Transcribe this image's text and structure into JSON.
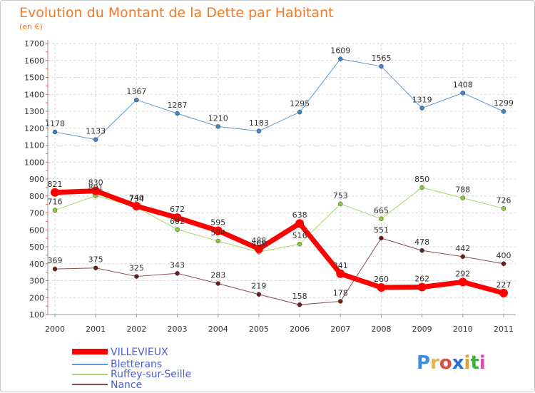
{
  "chart_data": {
    "type": "line",
    "title": "Evolution du Montant de la Dette par Habitant",
    "subtitle": "(en €)",
    "xlabel": "",
    "ylabel": "",
    "categories": [
      "2000",
      "2001",
      "2002",
      "2003",
      "2004",
      "2005",
      "2006",
      "2007",
      "2008",
      "2009",
      "2010",
      "2011"
    ],
    "ylim": [
      100,
      1700
    ],
    "yticks": [
      100,
      200,
      300,
      400,
      500,
      600,
      700,
      800,
      900,
      1000,
      1100,
      1200,
      1300,
      1400,
      1500,
      1600,
      1700
    ],
    "series": [
      {
        "name": "Bletterans",
        "color": "#5a9bd5",
        "marker": "#3e86c7",
        "width": 1,
        "values": [
          1178,
          1133,
          1367,
          1287,
          1210,
          1183,
          1295,
          1609,
          1565,
          1319,
          1408,
          1299
        ]
      },
      {
        "name": "Ruffey-sur-Seille",
        "color": "#a6d96a",
        "marker": "#8ccc3c",
        "width": 1,
        "values": [
          716,
          801,
          734,
          602,
          534,
          469,
          516,
          753,
          665,
          850,
          788,
          726
        ]
      },
      {
        "name": "Nance",
        "color": "#8a4b4b",
        "marker": "#6b1e1e",
        "width": 1,
        "values": [
          369,
          375,
          325,
          343,
          283,
          219,
          158,
          178,
          551,
          478,
          442,
          400
        ]
      },
      {
        "name": "VILLEVIEUX",
        "color": "#ff0000",
        "marker": "#ff0000",
        "width": 7,
        "values": [
          821,
          830,
          740,
          672,
          595,
          488,
          638,
          341,
          260,
          262,
          292,
          227
        ]
      }
    ],
    "legend": [
      "VILLEVIEUX",
      "Bletterans",
      "Ruffey-sur-Seille",
      "Nance"
    ],
    "legend_position": "bottom-left"
  },
  "branding": {
    "logo_letters": [
      "P",
      "r",
      "o",
      "x",
      "i",
      "t",
      "i"
    ],
    "logo_colors": [
      "#3c8de0",
      "#f0b43c",
      "#e04a3c",
      "#2a6fd6",
      "#e0a030",
      "#3cb43c",
      "#e04ab4"
    ]
  }
}
